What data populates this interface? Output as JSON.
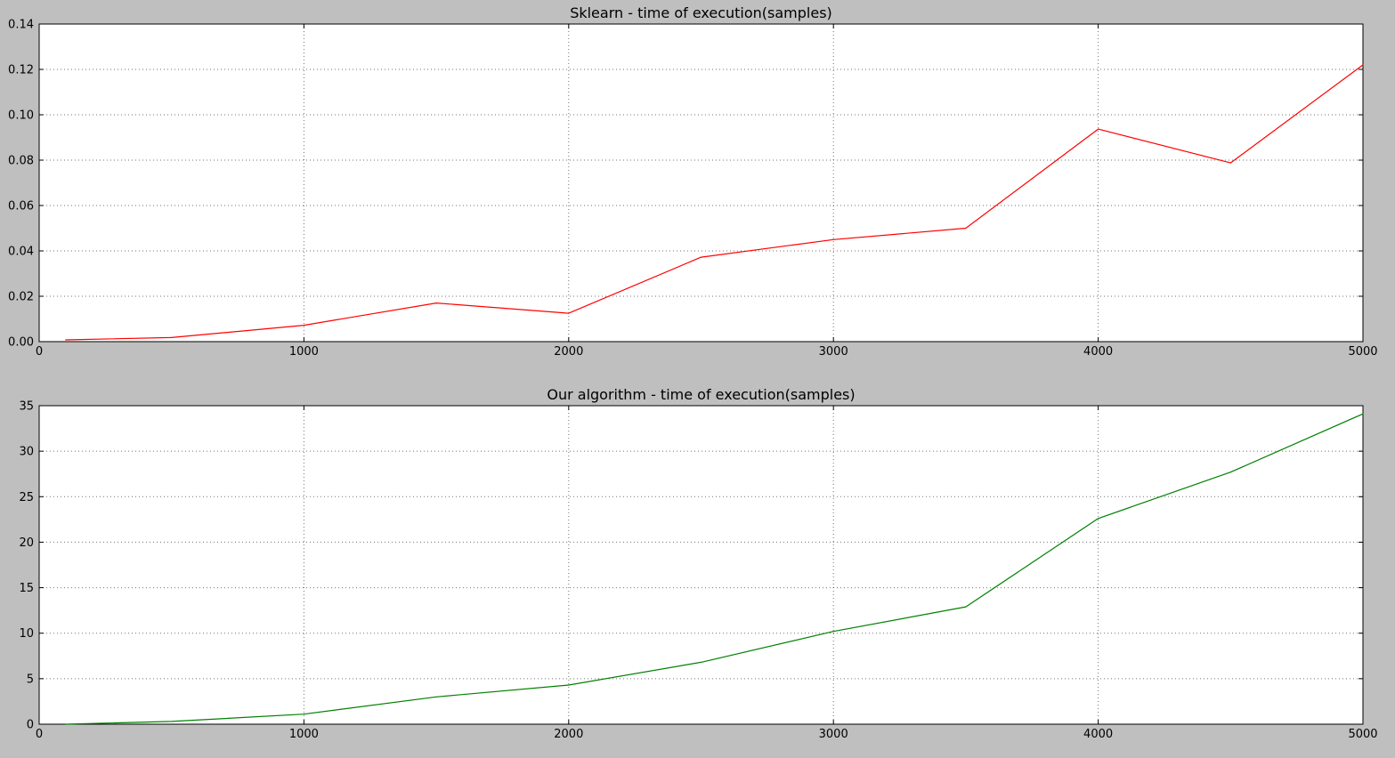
{
  "chart_data": [
    {
      "type": "line",
      "title": "Sklearn - time of execution(samples)",
      "xlabel": "",
      "ylabel": "",
      "xlim": [
        0,
        5000
      ],
      "ylim": [
        0,
        0.14
      ],
      "xticks": [
        0,
        1000,
        2000,
        3000,
        4000,
        5000
      ],
      "xtick_labels": [
        "0",
        "1000",
        "2000",
        "3000",
        "4000",
        "5000"
      ],
      "yticks": [
        0,
        0.02,
        0.04,
        0.06,
        0.08,
        0.1,
        0.12,
        0.14
      ],
      "ytick_labels": [
        "0.00",
        "0.02",
        "0.04",
        "0.06",
        "0.08",
        "0.10",
        "0.12",
        "0.14"
      ],
      "grid": true,
      "series": [
        {
          "color": "#ff0000",
          "x": [
            100,
            500,
            1000,
            1500,
            2000,
            2500,
            3000,
            3500,
            4000,
            4500,
            5000
          ],
          "values": [
            0.0008,
            0.0018,
            0.0072,
            0.017,
            0.0125,
            0.0372,
            0.045,
            0.05,
            0.0937,
            0.0788,
            0.122
          ]
        }
      ]
    },
    {
      "type": "line",
      "title": "Our algorithm - time of execution(samples)",
      "xlabel": "",
      "ylabel": "",
      "xlim": [
        0,
        5000
      ],
      "ylim": [
        0,
        35
      ],
      "xticks": [
        0,
        1000,
        2000,
        3000,
        4000,
        5000
      ],
      "xtick_labels": [
        "0",
        "1000",
        "2000",
        "3000",
        "4000",
        "5000"
      ],
      "yticks": [
        0,
        5,
        10,
        15,
        20,
        25,
        30,
        35
      ],
      "ytick_labels": [
        "0",
        "5",
        "10",
        "15",
        "20",
        "25",
        "30",
        "35"
      ],
      "grid": true,
      "series": [
        {
          "color": "#008000",
          "x": [
            100,
            500,
            1000,
            1500,
            2000,
            2500,
            3000,
            3500,
            4000,
            4500,
            5000
          ],
          "values": [
            0.0,
            0.3,
            1.1,
            3.0,
            4.3,
            6.8,
            10.2,
            12.9,
            22.6,
            27.7,
            34.1
          ]
        }
      ]
    }
  ]
}
